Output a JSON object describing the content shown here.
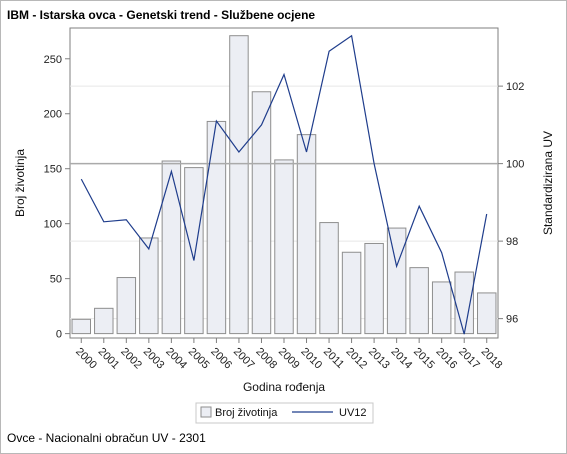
{
  "title": "IBM - Istarska ovca - Genetski trend - Službene ocjene",
  "footnote": "Ovce - Nacionalni obračun UV - 2301",
  "chart_data": {
    "type": "bar",
    "x_label": "Godina rođenja",
    "y_label": "Broj životinja",
    "y2_label": "Standardizirana UV",
    "categories": [
      "2000",
      "2001",
      "2002",
      "2003",
      "2004",
      "2005",
      "2006",
      "2007",
      "2008",
      "2009",
      "2010",
      "2011",
      "2012",
      "2013",
      "2014",
      "2015",
      "2016",
      "2017",
      "2018"
    ],
    "series": [
      {
        "name": "Broj životinja",
        "type": "bar",
        "axis": "left",
        "values": [
          13,
          23,
          51,
          87,
          157,
          151,
          193,
          271,
          220,
          158,
          181,
          101,
          74,
          82,
          96,
          60,
          47,
          56,
          37
        ]
      },
      {
        "name": "UV12",
        "type": "line",
        "axis": "right",
        "values": [
          99.6,
          98.5,
          98.55,
          97.8,
          99.8,
          97.5,
          101.1,
          100.3,
          101.0,
          102.3,
          100.3,
          102.9,
          103.3,
          100.0,
          97.35,
          98.9,
          97.7,
          95.6,
          98.7
        ]
      }
    ],
    "y_ticks": [
      0,
      50,
      100,
      150,
      200,
      250
    ],
    "y_range": [
      -4,
      278
    ],
    "y2_ticks": [
      96,
      98,
      100,
      102
    ],
    "y2_range": [
      95.5,
      103.5
    ],
    "reference_line_y2": 100,
    "grid": true,
    "legend_position": "bottom-center",
    "colors": {
      "bar_fill": "#eceef4",
      "bar_stroke": "#8e8e8e",
      "line": "#1f3d8c",
      "reference": "#aaaaaa",
      "grid": "#e6e6e6",
      "axis": "#7f7f7f"
    }
  }
}
